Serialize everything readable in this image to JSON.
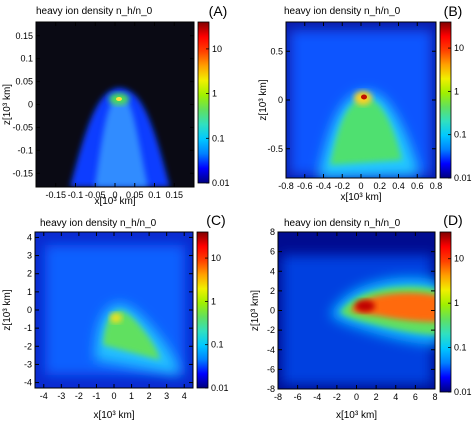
{
  "panels": [
    {
      "letter": "(A)",
      "title": "heavy ion density n_h/n_0",
      "x_ticks": [
        "-0.15",
        "-0.1",
        "-0.05",
        "0",
        "0.05",
        "0.1",
        "0.15"
      ],
      "x_tick_values": [
        -0.15,
        -0.1,
        -0.05,
        0,
        0.05,
        0.1,
        0.15
      ],
      "xlim": [
        -0.2,
        0.2
      ],
      "y_ticks": [
        "0.15",
        "0.1",
        "0.05",
        "0",
        "-0.05",
        "-0.1",
        "-0.15"
      ],
      "y_tick_values": [
        0.15,
        0.1,
        0.05,
        0,
        -0.05,
        -0.1,
        -0.15
      ],
      "ylim": [
        -0.18,
        0.18
      ],
      "xlabel": "x[10³ km]",
      "ylabel": "z[10³ km]",
      "colorbar_ticks": [
        "10",
        "1",
        "0.1",
        "0.01"
      ],
      "colorbar_values": [
        10,
        1,
        0.1,
        0.01
      ],
      "colorbar_range": [
        0.01,
        40
      ]
    },
    {
      "letter": "(B)",
      "title": "heavy ion density n_h/n_0",
      "x_ticks": [
        "-0.8",
        "-0.6",
        "-0.4",
        "-0.2",
        "0",
        "0.2",
        "0.4",
        "0.6",
        "0.8"
      ],
      "x_tick_values": [
        -0.8,
        -0.6,
        -0.4,
        -0.2,
        0,
        0.2,
        0.4,
        0.6,
        0.8
      ],
      "xlim": [
        -0.8,
        0.8
      ],
      "y_ticks": [
        "0.5",
        "0",
        "-0.5"
      ],
      "y_tick_values": [
        0.5,
        0,
        -0.5
      ],
      "ylim": [
        -0.8,
        0.8
      ],
      "xlabel": "x[10³ km]",
      "ylabel": "z[10³ km]",
      "colorbar_ticks": [
        "10",
        "1",
        "0.1",
        "0.01"
      ],
      "colorbar_values": [
        10,
        1,
        0.1,
        0.01
      ],
      "colorbar_range": [
        0.01,
        40
      ]
    },
    {
      "letter": "(C)",
      "title": "heavy ion density n_h/n_0",
      "x_ticks": [
        "-4",
        "-3",
        "-2",
        "-1",
        "0",
        "1",
        "2",
        "3",
        "4"
      ],
      "x_tick_values": [
        -4,
        -3,
        -2,
        -1,
        0,
        1,
        2,
        3,
        4
      ],
      "xlim": [
        -4.5,
        4.5
      ],
      "y_ticks": [
        "4",
        "3",
        "2",
        "1",
        "0",
        "-1",
        "-2",
        "-3",
        "-4"
      ],
      "y_tick_values": [
        4,
        3,
        2,
        1,
        0,
        -1,
        -2,
        -3,
        -4
      ],
      "ylim": [
        -4.3,
        4.3
      ],
      "xlabel": "x[10³ km]",
      "ylabel": "z[10³ km]",
      "colorbar_ticks": [
        "10",
        "1",
        "0.1",
        "0.01"
      ],
      "colorbar_values": [
        10,
        1,
        0.1,
        0.01
      ],
      "colorbar_range": [
        0.01,
        40
      ]
    },
    {
      "letter": "(D)",
      "title": "heavy ion density n_h/n_0",
      "x_ticks": [
        "-8",
        "-6",
        "-4",
        "-2",
        "0",
        "2",
        "4",
        "6",
        "8"
      ],
      "x_tick_values": [
        -8,
        -6,
        -4,
        -2,
        0,
        2,
        4,
        6,
        8
      ],
      "xlim": [
        -8,
        8
      ],
      "y_ticks": [
        "8",
        "6",
        "4",
        "2",
        "0",
        "-2",
        "-4",
        "-6",
        "-8"
      ],
      "y_tick_values": [
        8,
        6,
        4,
        2,
        0,
        -2,
        -4,
        -6,
        -8
      ],
      "ylim": [
        -8,
        8
      ],
      "xlabel": "x[10³ km]",
      "ylabel": "z[10³ km]",
      "colorbar_ticks": [
        "10",
        "1",
        "0.1",
        "0.01"
      ],
      "colorbar_values": [
        10,
        1,
        0.1,
        0.01
      ],
      "colorbar_range": [
        0.01,
        40
      ]
    }
  ],
  "colormap": [
    "#000080",
    "#0000ff",
    "#0080ff",
    "#00c8ff",
    "#30e0c0",
    "#60e060",
    "#a0f000",
    "#f0f000",
    "#ffa000",
    "#ff4000",
    "#ff0000",
    "#800000"
  ],
  "chart_data": [
    {
      "type": "heatmap",
      "title": "heavy ion density n_h/n_0",
      "xlabel": "x[10³ km]",
      "ylabel": "z[10³ km]",
      "xlim": [
        -0.2,
        0.2
      ],
      "ylim": [
        -0.18,
        0.18
      ],
      "color_scale": "log",
      "zlim": [
        0.01,
        40
      ],
      "peak": {
        "x": 0.0,
        "z": 0.0,
        "value": 2
      }
    },
    {
      "type": "heatmap",
      "title": "heavy ion density n_h/n_0",
      "xlabel": "x[10³ km]",
      "ylabel": "z[10³ km]",
      "xlim": [
        -0.8,
        0.8
      ],
      "ylim": [
        -0.8,
        0.8
      ],
      "color_scale": "log",
      "zlim": [
        0.01,
        40
      ],
      "peak": {
        "x": 0.0,
        "z": 0.05,
        "value": 20
      }
    },
    {
      "type": "heatmap",
      "title": "heavy ion density n_h/n_0",
      "xlabel": "x[10³ km]",
      "ylabel": "z[10³ km]",
      "xlim": [
        -4.5,
        4.5
      ],
      "ylim": [
        -4.3,
        4.3
      ],
      "color_scale": "log",
      "zlim": [
        0.01,
        40
      ],
      "peak": {
        "x": 0.0,
        "z": 0.0,
        "value": 3
      }
    },
    {
      "type": "heatmap",
      "title": "heavy ion density n_h/n_0",
      "xlabel": "x[10³ km]",
      "ylabel": "z[10³ km]",
      "xlim": [
        -8,
        8
      ],
      "ylim": [
        -8,
        8
      ],
      "color_scale": "log",
      "zlim": [
        0.01,
        40
      ],
      "peak": {
        "x": 0.5,
        "z": 0.0,
        "value": 30
      }
    }
  ]
}
